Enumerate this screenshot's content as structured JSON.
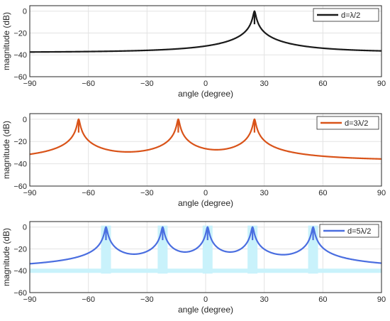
{
  "chart_data": [
    {
      "type": "line",
      "xlabel": "angle (degree)",
      "ylabel": "magnitude (dB)",
      "xlim": [
        -90,
        90
      ],
      "ylim": [
        -60,
        5
      ],
      "xticks": [
        -90,
        -60,
        -30,
        0,
        30,
        60,
        90
      ],
      "yticks": [
        0,
        -20,
        -40,
        -60
      ],
      "grid": true,
      "legend_position": "top-right",
      "series": [
        {
          "name": "d=λ/2",
          "color": "#1a1a1a",
          "baseline_db": -38,
          "peaks_deg": [
            25
          ],
          "peak_db": 0
        }
      ]
    },
    {
      "type": "line",
      "xlabel": "angle (degree)",
      "ylabel": "magnitude (dB)",
      "xlim": [
        -90,
        90
      ],
      "ylim": [
        -60,
        5
      ],
      "xticks": [
        -90,
        -60,
        -30,
        0,
        30,
        60,
        90
      ],
      "yticks": [
        0,
        -20,
        -40,
        -60
      ],
      "grid": true,
      "legend_position": "top-right",
      "series": [
        {
          "name": "d=3λ/2",
          "color": "#d95319",
          "baseline_db": -38,
          "peaks_deg": [
            -65,
            -14,
            25
          ],
          "peak_db": 0
        }
      ]
    },
    {
      "type": "line",
      "xlabel": "angle (degree)",
      "ylabel": "magnitude (dB)",
      "xlim": [
        -90,
        90
      ],
      "ylim": [
        -60,
        5
      ],
      "xticks": [
        -90,
        -60,
        -30,
        0,
        30,
        60,
        90
      ],
      "yticks": [
        0,
        -20,
        -40,
        -60
      ],
      "grid": true,
      "legend_position": "top-right",
      "series": [
        {
          "name": "d=5λ/2",
          "color": "#4a6ee0",
          "band_color": "#c9f2fb",
          "baseline_db": -40,
          "peaks_deg": [
            -51,
            -22,
            1,
            24,
            55
          ],
          "peak_db": 0
        }
      ]
    }
  ]
}
